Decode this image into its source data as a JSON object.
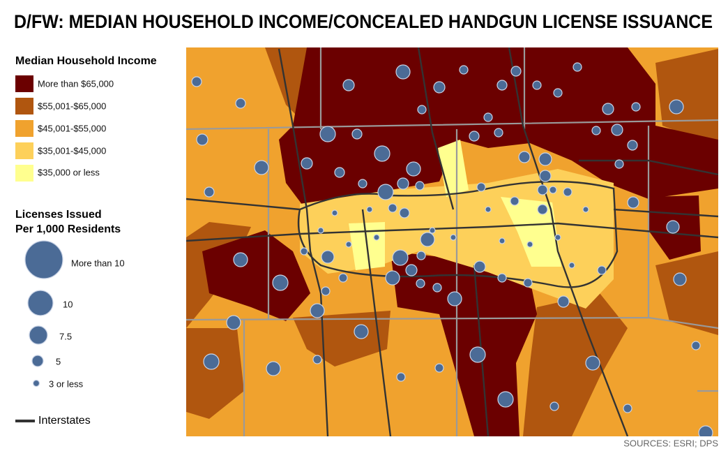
{
  "header": {
    "title": "D/FW: MEDIAN HOUSEHOLD INCOME/CONCEALED HANDGUN LICENSE ISSUANCE"
  },
  "legend": {
    "income_title": "Median Household Income",
    "income_items": [
      "More than $65,000",
      "$55,001-$65,000",
      "$45,001-$55,000",
      "$35,001-$45,000",
      "$35,000 or less"
    ],
    "license_title": [
      "Licenses Issued",
      "Per 1,000 Residents"
    ],
    "license_items": [
      "More than 10",
      "10",
      "7.5",
      "5",
      "3 or less"
    ],
    "interstates": "Interstates"
  },
  "footer": {
    "sources": "SOURCES: ESRI; DPS"
  }
}
